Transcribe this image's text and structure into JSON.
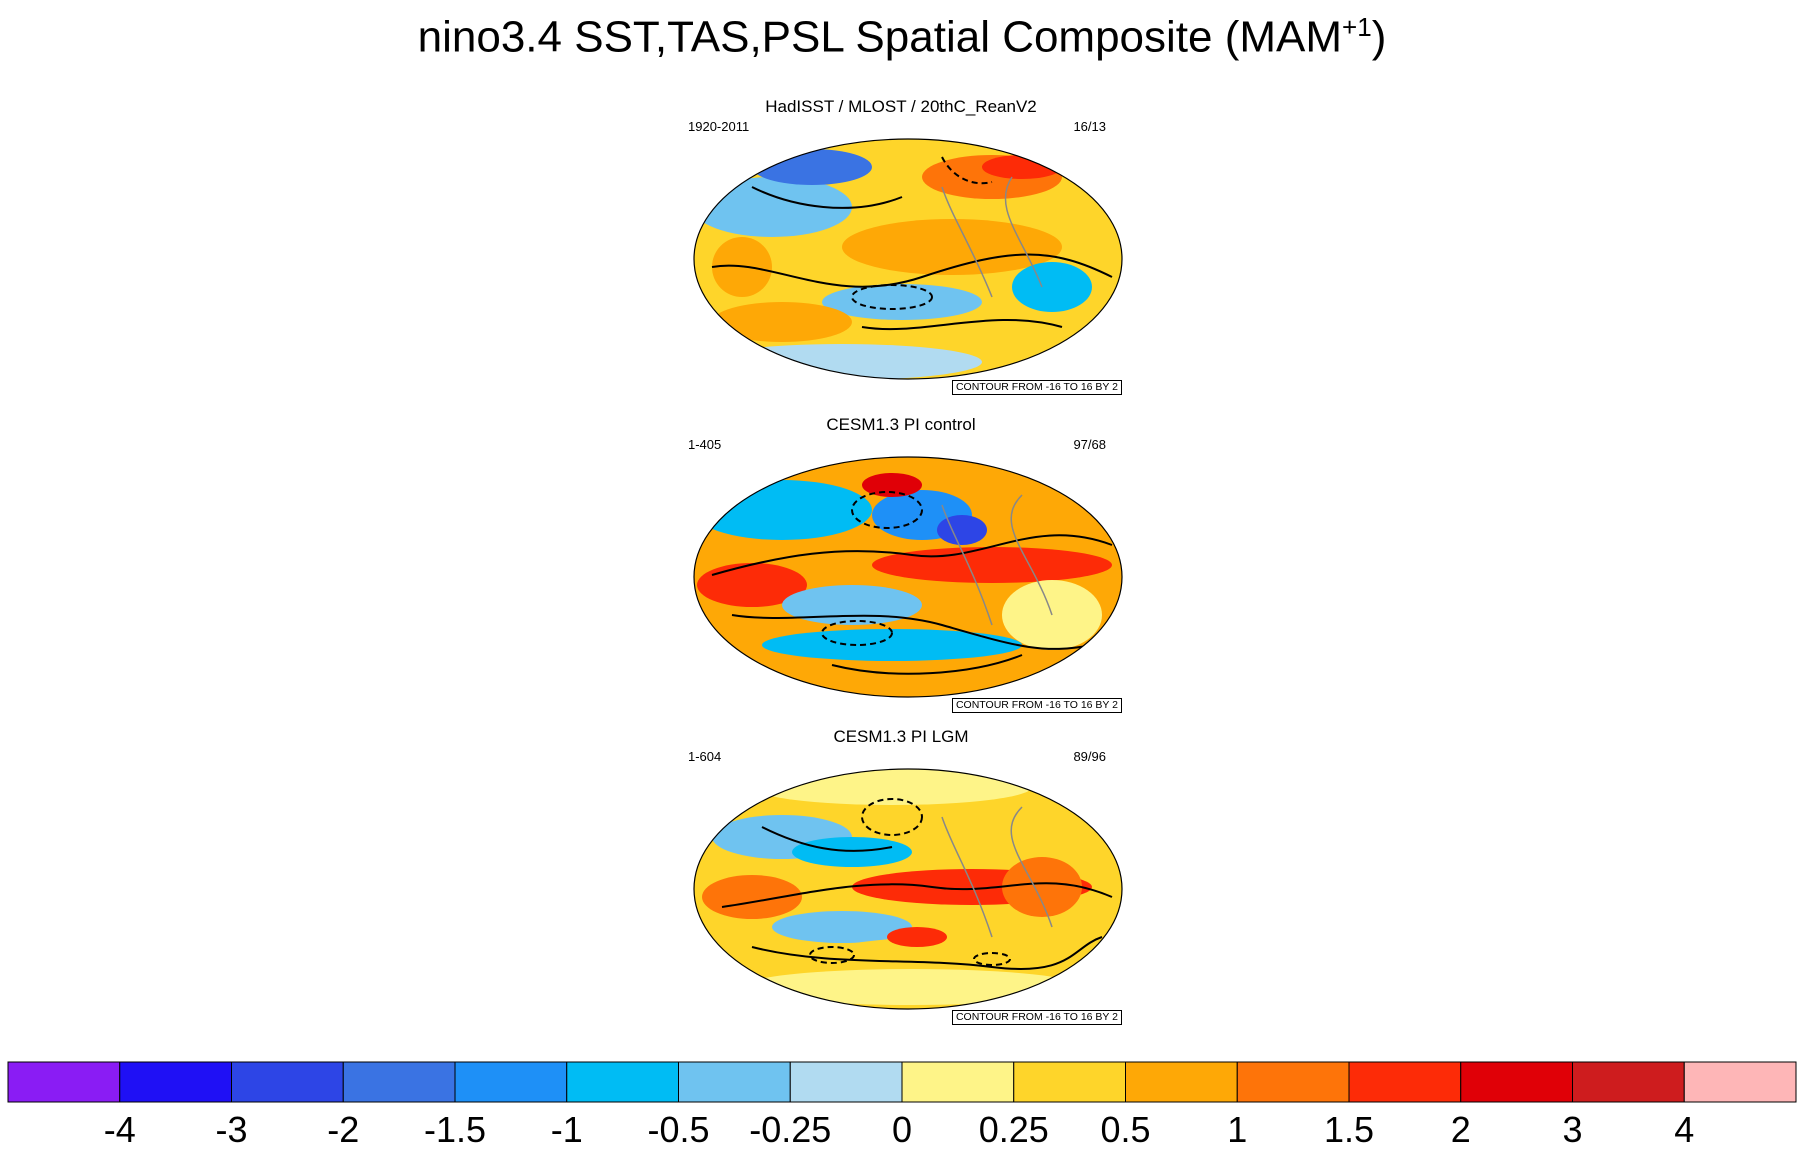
{
  "chart_data": {
    "type": "map-composite",
    "title": "nino3.4 SST,TAS,PSL Spatial Composite (MAM",
    "title_sup": "+1",
    "title_close": ")",
    "panels": [
      {
        "title": "HadISST / MLOST / 20thC_ReanV2",
        "left_string": "1920-2011",
        "right_string": "16/13",
        "contour_info": "CONTOUR FROM -16 TO 16 BY 2"
      },
      {
        "title": "CESM1.3 PI control",
        "left_string": "1-405",
        "right_string": "97/68",
        "contour_info": "CONTOUR FROM -16 TO 16 BY 2"
      },
      {
        "title": "CESM1.3 PI LGM",
        "left_string": "1-604",
        "right_string": "89/96",
        "contour_info": "CONTOUR FROM -16 TO 16 BY 2"
      }
    ],
    "colorbar": {
      "levels": [
        "-4",
        "-3",
        "-2",
        "-1.5",
        "-1",
        "-0.5",
        "-0.25",
        "0",
        "0.25",
        "0.5",
        "1",
        "1.5",
        "2",
        "3",
        "4"
      ],
      "colors": [
        "#8a1cf4",
        "#1f10f5",
        "#2d45e6",
        "#3a73e3",
        "#1e90f7",
        "#00bcf4",
        "#6fc3f0",
        "#b1dbf1",
        "#fef488",
        "#fed52a",
        "#fea806",
        "#fe7409",
        "#fd2b07",
        "#e00007",
        "#ce1c1e",
        "#feb6b7"
      ]
    }
  }
}
